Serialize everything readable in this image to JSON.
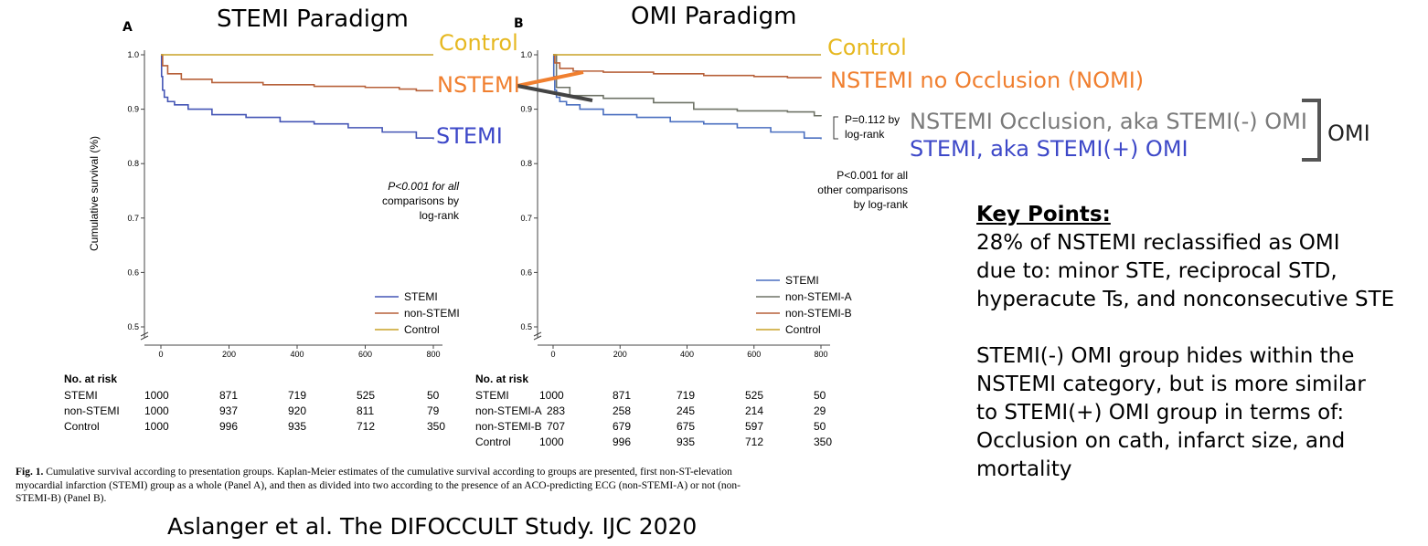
{
  "overlay": {
    "title_a": "STEMI Paradigm",
    "title_b": "OMI Paradigm",
    "a_control": "Control",
    "a_nstemi": "NSTEMI",
    "a_stemi": "STEMI",
    "b_control": "Control",
    "b_nomi": "NSTEMI no Occlusion (NOMI)",
    "b_nstemi_omi": "NSTEMI Occlusion, aka STEMI(-) OMI",
    "b_stemi_omi": "STEMI, aka STEMI(+) OMI",
    "omi_bracket_label": "OMI",
    "citation": "Aslanger et al. The DIFOCCULT Study. IJC 2020",
    "colors": {
      "orange": "#f07f2f",
      "gold": "#e6b820",
      "gray": "#7a7a7a",
      "blue": "#3d48c8"
    }
  },
  "key_points": {
    "heading": "Key Points:",
    "p1": [
      "28% of NSTEMI reclassified as OMI",
      "due to: minor STE, reciprocal STD,",
      "hyperacute Ts, and nonconsecutive STE"
    ],
    "p2": [
      "STEMI(-) OMI group hides within the",
      "NSTEMI category, but is more similar",
      "to STEMI(+) OMI group in terms of:",
      "Occlusion on cath, infarct size, and",
      "mortality"
    ]
  },
  "caption": {
    "label": "Fig. 1.",
    "lines": [
      "Cumulative survival according to presentation groups. Kaplan-Meier estimates of the cumulative survival according to groups are presented, first non-ST-elevation",
      "myocardial infarction (STEMI) group as a whole (Panel A), and then as divided into two according to the presence of an ACO-predicting ECG (non-STEMI-A) or not (non-",
      "STEMI-B) (Panel B)."
    ]
  },
  "chart_data": [
    {
      "panel": "A",
      "type": "line",
      "ylabel": "Cumulative survival (%)",
      "ylim": [
        0.5,
        1.0
      ],
      "yticks": [
        "0.5",
        "0.6",
        "0.7",
        "0.8",
        "0.9",
        "1.0"
      ],
      "xlim": [
        0,
        800
      ],
      "xticks": [
        "0",
        "200",
        "400",
        "600",
        "800"
      ],
      "legend": "bottom-right",
      "annotation": [
        "P<0.001 for all",
        "comparisons by",
        "log-rank"
      ],
      "series": [
        {
          "name": "STEMI",
          "color": "#4455b5",
          "x": [
            0,
            2,
            5,
            10,
            20,
            40,
            80,
            150,
            250,
            350,
            450,
            550,
            650,
            750,
            800
          ],
          "y": [
            1.0,
            0.96,
            0.935,
            0.922,
            0.914,
            0.908,
            0.9,
            0.89,
            0.885,
            0.877,
            0.873,
            0.866,
            0.858,
            0.847,
            0.845
          ]
        },
        {
          "name": "non-STEMI",
          "color": "#b7613a",
          "x": [
            0,
            5,
            20,
            60,
            150,
            300,
            450,
            600,
            700,
            750,
            800
          ],
          "y": [
            1.0,
            0.98,
            0.965,
            0.955,
            0.949,
            0.945,
            0.942,
            0.94,
            0.937,
            0.934,
            0.934
          ]
        },
        {
          "name": "Control",
          "color": "#c9a227",
          "x": [
            0,
            800
          ],
          "y": [
            1.0,
            1.0
          ]
        }
      ],
      "at_risk": {
        "title": "No. at risk",
        "rows": [
          {
            "label": "STEMI",
            "values": [
              "1000",
              "871",
              "719",
              "525",
              "50"
            ]
          },
          {
            "label": "non-STEMI",
            "values": [
              "1000",
              "937",
              "920",
              "811",
              "79"
            ]
          },
          {
            "label": "Control",
            "values": [
              "1000",
              "996",
              "935",
              "712",
              "350"
            ]
          }
        ]
      }
    },
    {
      "panel": "B",
      "type": "line",
      "ylim": [
        0.5,
        1.0
      ],
      "yticks": [
        "0.5",
        "0.6",
        "0.7",
        "0.8",
        "0.9",
        "1.0"
      ],
      "xlim": [
        0,
        800
      ],
      "xticks": [
        "0",
        "200",
        "400",
        "600",
        "800"
      ],
      "legend": "bottom-right",
      "annotation_top": [
        "P=0.112 by",
        "log-rank"
      ],
      "annotation": [
        "P<0.001 for all",
        "other comparisons",
        "by log-rank"
      ],
      "series": [
        {
          "name": "STEMI",
          "color": "#4a6fc0",
          "x": [
            0,
            2,
            5,
            10,
            20,
            40,
            80,
            150,
            250,
            350,
            450,
            550,
            650,
            750,
            800
          ],
          "y": [
            1.0,
            0.96,
            0.935,
            0.922,
            0.914,
            0.908,
            0.9,
            0.89,
            0.885,
            0.877,
            0.873,
            0.866,
            0.858,
            0.847,
            0.845
          ]
        },
        {
          "name": "non-STEMI-A",
          "color": "#6e7266",
          "x": [
            0,
            10,
            50,
            150,
            300,
            420,
            550,
            700,
            780,
            800
          ],
          "y": [
            1.0,
            0.94,
            0.925,
            0.92,
            0.912,
            0.9,
            0.897,
            0.895,
            0.888,
            0.887
          ]
        },
        {
          "name": "non-STEMI-B",
          "color": "#b7613a",
          "x": [
            0,
            5,
            20,
            60,
            150,
            300,
            450,
            600,
            700,
            800
          ],
          "y": [
            1.0,
            0.985,
            0.975,
            0.97,
            0.968,
            0.965,
            0.962,
            0.96,
            0.958,
            0.957
          ]
        },
        {
          "name": "Control",
          "color": "#c9a227",
          "x": [
            0,
            800
          ],
          "y": [
            1.0,
            1.0
          ]
        }
      ],
      "at_risk": {
        "title": "No. at risk",
        "rows": [
          {
            "label": "STEMI",
            "first": "1000",
            "values": [
              "871",
              "719",
              "525",
              "50"
            ]
          },
          {
            "label": "non-STEMI-A",
            "first": "283",
            "values": [
              "258",
              "245",
              "214",
              "29"
            ]
          },
          {
            "label": "non-STEMI-B",
            "first": "707",
            "values": [
              "679",
              "675",
              "597",
              "50"
            ]
          },
          {
            "label": "Control",
            "first": "1000",
            "values": [
              "996",
              "935",
              "712",
              "350"
            ]
          }
        ]
      }
    }
  ]
}
